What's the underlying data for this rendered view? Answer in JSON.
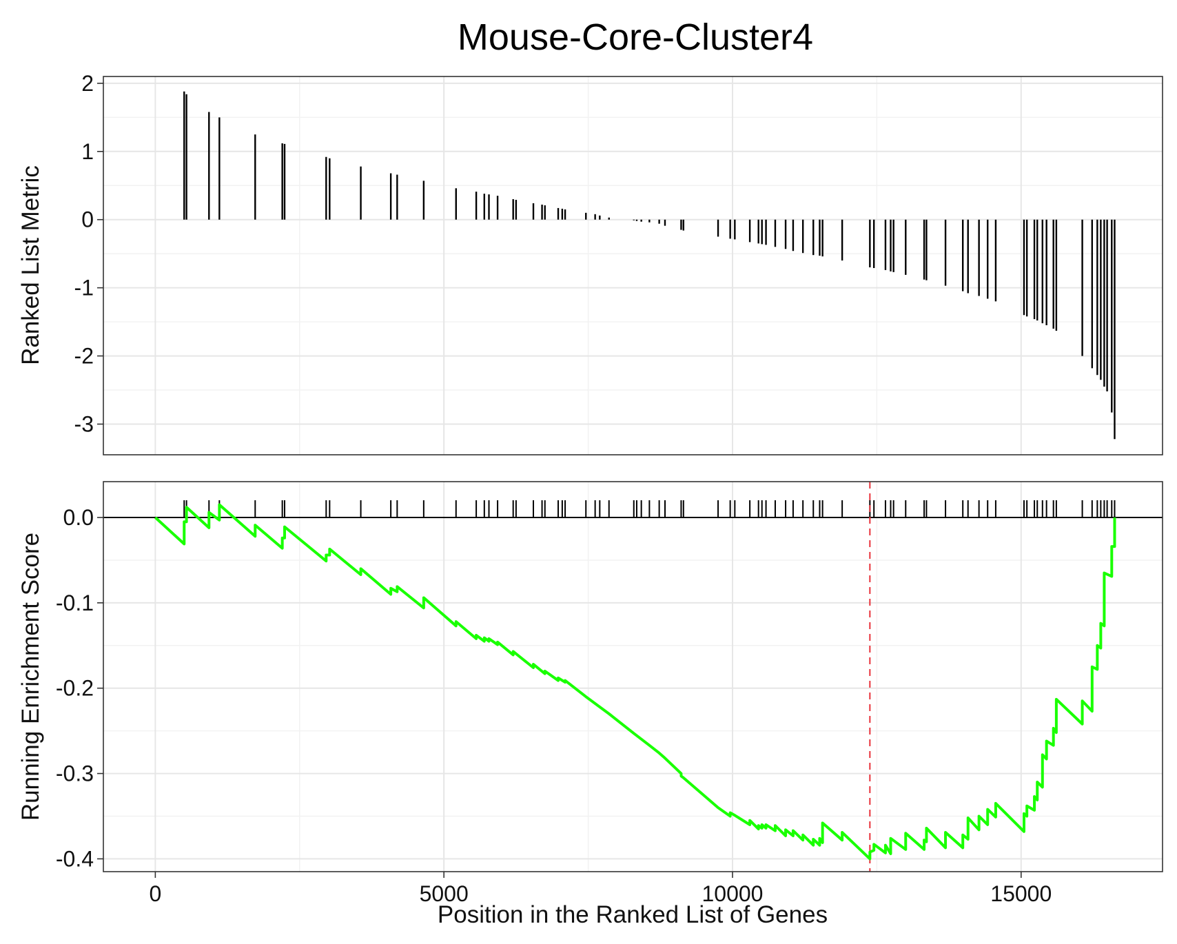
{
  "chart_data": [
    {
      "type": "bar",
      "title": "Mouse-Core-Cluster4",
      "xlabel": "",
      "ylabel": "Ranked List Metric",
      "xlim": [
        -900,
        17450
      ],
      "ylim": [
        -3.45,
        2.1
      ],
      "x_ticks": [
        0,
        5000,
        10000,
        15000
      ],
      "y_ticks": [
        2,
        1,
        0,
        -1,
        -2,
        -3
      ],
      "y_tick_labels": [
        "2",
        "1",
        "0",
        "-1",
        "-2",
        "-3"
      ],
      "grid": true,
      "bar_color": "#000000",
      "points": [
        [
          500,
          1.88
        ],
        [
          540,
          1.84
        ],
        [
          930,
          1.58
        ],
        [
          1110,
          1.5
        ],
        [
          1730,
          1.25
        ],
        [
          2200,
          1.12
        ],
        [
          2240,
          1.11
        ],
        [
          2960,
          0.92
        ],
        [
          3020,
          0.9
        ],
        [
          3560,
          0.78
        ],
        [
          4080,
          0.68
        ],
        [
          4190,
          0.66
        ],
        [
          4650,
          0.57
        ],
        [
          5210,
          0.46
        ],
        [
          5560,
          0.41
        ],
        [
          5700,
          0.38
        ],
        [
          5780,
          0.37
        ],
        [
          5930,
          0.35
        ],
        [
          6200,
          0.3
        ],
        [
          6250,
          0.29
        ],
        [
          6550,
          0.24
        ],
        [
          6700,
          0.22
        ],
        [
          6750,
          0.21
        ],
        [
          6980,
          0.17
        ],
        [
          7050,
          0.16
        ],
        [
          7100,
          0.15
        ],
        [
          7460,
          0.1
        ],
        [
          7620,
          0.08
        ],
        [
          7700,
          0.06
        ],
        [
          7860,
          0.03
        ],
        [
          8290,
          -0.01
        ],
        [
          8340,
          -0.02
        ],
        [
          8420,
          -0.03
        ],
        [
          8560,
          -0.04
        ],
        [
          8730,
          -0.06
        ],
        [
          8830,
          -0.09
        ],
        [
          9110,
          -0.15
        ],
        [
          9150,
          -0.16
        ],
        [
          9750,
          -0.25
        ],
        [
          9960,
          -0.28
        ],
        [
          10040,
          -0.29
        ],
        [
          10300,
          -0.33
        ],
        [
          10450,
          -0.35
        ],
        [
          10510,
          -0.36
        ],
        [
          10580,
          -0.37
        ],
        [
          10740,
          -0.4
        ],
        [
          10920,
          -0.43
        ],
        [
          11050,
          -0.46
        ],
        [
          11220,
          -0.49
        ],
        [
          11400,
          -0.52
        ],
        [
          11510,
          -0.53
        ],
        [
          11560,
          -0.54
        ],
        [
          11900,
          -0.6
        ],
        [
          12380,
          -0.7
        ],
        [
          12450,
          -0.71
        ],
        [
          12650,
          -0.74
        ],
        [
          12740,
          -0.76
        ],
        [
          12790,
          -0.77
        ],
        [
          13000,
          -0.81
        ],
        [
          13320,
          -0.88
        ],
        [
          13360,
          -0.89
        ],
        [
          13690,
          -0.97
        ],
        [
          13990,
          -1.05
        ],
        [
          14080,
          -1.08
        ],
        [
          14270,
          -1.12
        ],
        [
          14420,
          -1.16
        ],
        [
          14560,
          -1.2
        ],
        [
          15050,
          -1.4
        ],
        [
          15100,
          -1.42
        ],
        [
          15230,
          -1.46
        ],
        [
          15280,
          -1.48
        ],
        [
          15370,
          -1.52
        ],
        [
          15440,
          -1.55
        ],
        [
          15560,
          -1.6
        ],
        [
          15610,
          -1.63
        ],
        [
          16060,
          -2.0
        ],
        [
          16230,
          -2.18
        ],
        [
          16320,
          -2.28
        ],
        [
          16380,
          -2.35
        ],
        [
          16440,
          -2.45
        ],
        [
          16490,
          -2.52
        ],
        [
          16570,
          -2.83
        ],
        [
          16620,
          -3.22
        ]
      ]
    },
    {
      "type": "line",
      "title": "",
      "xlabel": "Position in the Ranked List of Genes",
      "ylabel": "Running Enrichment Score",
      "xlim": [
        -900,
        17450
      ],
      "ylim": [
        -0.415,
        0.042
      ],
      "x_ticks": [
        0,
        5000,
        10000,
        15000
      ],
      "x_tick_labels": [
        "0",
        "5000",
        "10000",
        "15000"
      ],
      "y_ticks": [
        0.0,
        -0.1,
        -0.2,
        -0.3,
        -0.4
      ],
      "y_tick_labels": [
        "0.0",
        "-0.1",
        "-0.2",
        "-0.3",
        "-0.4"
      ],
      "grid": true,
      "line_color": "#19ff00",
      "zero_line_color": "#000000",
      "hit_mark_color": "#000000",
      "vline": {
        "x": 12380,
        "color": "#e8313a",
        "style": "dashed"
      },
      "series": [
        {
          "values": [
            [
              0,
              0.0
            ],
            [
              500,
              -0.031
            ],
            [
              500,
              -0.005
            ],
            [
              540,
              -0.005
            ],
            [
              540,
              0.012
            ],
            [
              930,
              -0.012
            ],
            [
              930,
              0.006
            ],
            [
              1110,
              -0.003
            ],
            [
              1110,
              0.015
            ],
            [
              1730,
              -0.022
            ],
            [
              1730,
              -0.009
            ],
            [
              2200,
              -0.036
            ],
            [
              2200,
              -0.024
            ],
            [
              2240,
              -0.024
            ],
            [
              2240,
              -0.011
            ],
            [
              2960,
              -0.051
            ],
            [
              2960,
              -0.044
            ],
            [
              3020,
              -0.044
            ],
            [
              3020,
              -0.037
            ],
            [
              3560,
              -0.067
            ],
            [
              3560,
              -0.06
            ],
            [
              4080,
              -0.09
            ],
            [
              4080,
              -0.083
            ],
            [
              4190,
              -0.087
            ],
            [
              4190,
              -0.081
            ],
            [
              4650,
              -0.106
            ],
            [
              4650,
              -0.094
            ],
            [
              5210,
              -0.127
            ],
            [
              5210,
              -0.122
            ],
            [
              5560,
              -0.142
            ],
            [
              5560,
              -0.138
            ],
            [
              5700,
              -0.145
            ],
            [
              5700,
              -0.141
            ],
            [
              5780,
              -0.145
            ],
            [
              5780,
              -0.142
            ],
            [
              5930,
              -0.149
            ],
            [
              5930,
              -0.146
            ],
            [
              6200,
              -0.161
            ],
            [
              6200,
              -0.157
            ],
            [
              6550,
              -0.176
            ],
            [
              6550,
              -0.172
            ],
            [
              6750,
              -0.183
            ],
            [
              6750,
              -0.18
            ],
            [
              6980,
              -0.191
            ],
            [
              6980,
              -0.188
            ],
            [
              7100,
              -0.193
            ],
            [
              7100,
              -0.191
            ],
            [
              7460,
              -0.21
            ],
            [
              7700,
              -0.222
            ],
            [
              7860,
              -0.23
            ],
            [
              8290,
              -0.253
            ],
            [
              8560,
              -0.267
            ],
            [
              8730,
              -0.276
            ],
            [
              8830,
              -0.282
            ],
            [
              9110,
              -0.3
            ],
            [
              9110,
              -0.303
            ],
            [
              9150,
              -0.305
            ],
            [
              9750,
              -0.34
            ],
            [
              9960,
              -0.35
            ],
            [
              9960,
              -0.346
            ],
            [
              10040,
              -0.349
            ],
            [
              10300,
              -0.36
            ],
            [
              10300,
              -0.355
            ],
            [
              10450,
              -0.365
            ],
            [
              10450,
              -0.361
            ],
            [
              10510,
              -0.364
            ],
            [
              10510,
              -0.36
            ],
            [
              10580,
              -0.364
            ],
            [
              10580,
              -0.36
            ],
            [
              10740,
              -0.367
            ],
            [
              10740,
              -0.361
            ],
            [
              10920,
              -0.373
            ],
            [
              10920,
              -0.366
            ],
            [
              11050,
              -0.373
            ],
            [
              11050,
              -0.367
            ],
            [
              11220,
              -0.378
            ],
            [
              11220,
              -0.372
            ],
            [
              11400,
              -0.384
            ],
            [
              11400,
              -0.377
            ],
            [
              11510,
              -0.384
            ],
            [
              11510,
              -0.376
            ],
            [
              11560,
              -0.381
            ],
            [
              11560,
              -0.358
            ],
            [
              11900,
              -0.378
            ],
            [
              11900,
              -0.369
            ],
            [
              12380,
              -0.4
            ],
            [
              12380,
              -0.392
            ],
            [
              12450,
              -0.39
            ],
            [
              12450,
              -0.383
            ],
            [
              12650,
              -0.393
            ],
            [
              12650,
              -0.384
            ],
            [
              12740,
              -0.394
            ],
            [
              12740,
              -0.376
            ],
            [
              13000,
              -0.389
            ],
            [
              13000,
              -0.37
            ],
            [
              13320,
              -0.389
            ],
            [
              13320,
              -0.378
            ],
            [
              13360,
              -0.38
            ],
            [
              13360,
              -0.364
            ],
            [
              13690,
              -0.387
            ],
            [
              13690,
              -0.369
            ],
            [
              13990,
              -0.387
            ],
            [
              13990,
              -0.372
            ],
            [
              14080,
              -0.377
            ],
            [
              14080,
              -0.352
            ],
            [
              14270,
              -0.366
            ],
            [
              14270,
              -0.35
            ],
            [
              14420,
              -0.36
            ],
            [
              14420,
              -0.342
            ],
            [
              14560,
              -0.351
            ],
            [
              14560,
              -0.335
            ],
            [
              15050,
              -0.368
            ],
            [
              15050,
              -0.347
            ],
            [
              15100,
              -0.35
            ],
            [
              15100,
              -0.338
            ],
            [
              15230,
              -0.343
            ],
            [
              15230,
              -0.327
            ],
            [
              15280,
              -0.331
            ],
            [
              15280,
              -0.31
            ],
            [
              15370,
              -0.316
            ],
            [
              15370,
              -0.278
            ],
            [
              15440,
              -0.283
            ],
            [
              15440,
              -0.262
            ],
            [
              15560,
              -0.267
            ],
            [
              15560,
              -0.247
            ],
            [
              15610,
              -0.252
            ],
            [
              15610,
              -0.213
            ],
            [
              16060,
              -0.242
            ],
            [
              16060,
              -0.215
            ],
            [
              16230,
              -0.227
            ],
            [
              16230,
              -0.175
            ],
            [
              16320,
              -0.178
            ],
            [
              16320,
              -0.15
            ],
            [
              16380,
              -0.153
            ],
            [
              16380,
              -0.124
            ],
            [
              16440,
              -0.127
            ],
            [
              16440,
              -0.065
            ],
            [
              16570,
              -0.069
            ],
            [
              16570,
              -0.034
            ],
            [
              16620,
              -0.034
            ],
            [
              16620,
              0.0
            ]
          ]
        }
      ],
      "hits": [
        500,
        540,
        930,
        1110,
        1730,
        2200,
        2240,
        2960,
        3020,
        3560,
        4080,
        4190,
        4650,
        5210,
        5560,
        5700,
        5780,
        5930,
        6200,
        6250,
        6550,
        6700,
        6750,
        6980,
        7050,
        7100,
        7460,
        7620,
        7700,
        7860,
        8290,
        8340,
        8420,
        8560,
        8730,
        8830,
        9110,
        9150,
        9750,
        9960,
        10040,
        10300,
        10450,
        10510,
        10580,
        10740,
        10920,
        11050,
        11220,
        11400,
        11510,
        11560,
        11900,
        12380,
        12450,
        12650,
        12740,
        12790,
        13000,
        13320,
        13360,
        13690,
        13990,
        14080,
        14270,
        14420,
        14560,
        15050,
        15100,
        15230,
        15280,
        15370,
        15440,
        15560,
        15610,
        16060,
        16230,
        16320,
        16380,
        16440,
        16490,
        16570,
        16620
      ]
    }
  ]
}
